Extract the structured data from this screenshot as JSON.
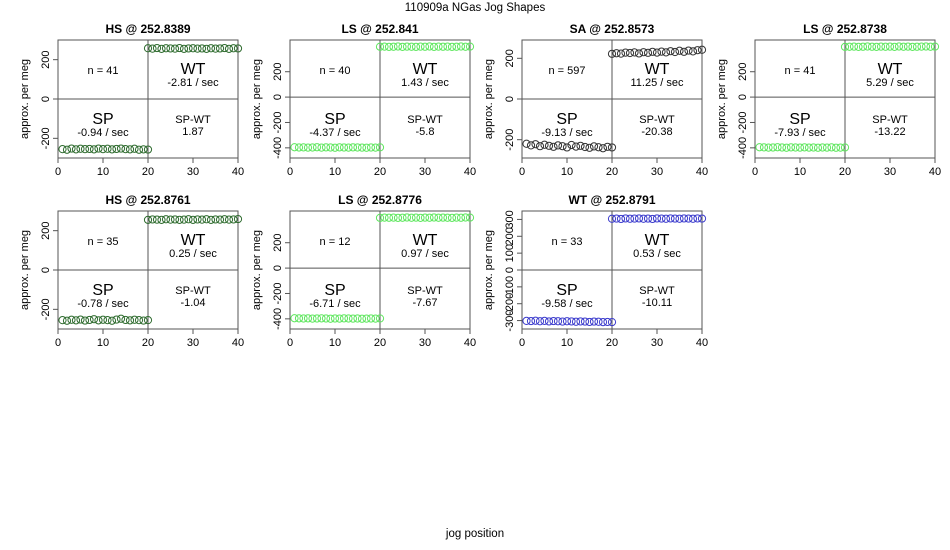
{
  "header": {
    "title": "110909a    NGas Jog Shapes"
  },
  "global_xlabel": "jog position",
  "chart_data": [
    {
      "type": "scatter",
      "title": "HS @ 252.8389",
      "ylabel": "approx. per meg",
      "xlim": [
        0,
        40
      ],
      "ylim": [
        -300,
        300
      ],
      "xticks": [
        0,
        10,
        20,
        30,
        40
      ],
      "xtick_labels": [
        "0",
        "10",
        "20",
        "30",
        "40"
      ],
      "yticks": [
        -200,
        0,
        200
      ],
      "ytick_labels": [
        "-200",
        "0",
        "200"
      ],
      "color": "#2e6b2e",
      "sp_points": {
        "x": [
          1,
          2,
          3,
          4,
          5,
          6,
          7,
          8,
          9,
          10,
          11,
          12,
          13,
          14,
          15,
          16,
          17,
          18,
          19,
          20
        ],
        "y": [
          -255,
          -258,
          -252,
          -256,
          -253,
          -255,
          -254,
          -256,
          -252,
          -255,
          -253,
          -256,
          -254,
          -252,
          -255,
          -256,
          -253,
          -258,
          -256,
          -257
        ]
      },
      "wt_points": {
        "x": [
          20,
          21,
          22,
          23,
          24,
          25,
          26,
          27,
          28,
          29,
          30,
          31,
          32,
          33,
          34,
          35,
          36,
          37,
          38,
          39,
          40
        ],
        "y": [
          258,
          256,
          259,
          255,
          258,
          257,
          256,
          259,
          255,
          257,
          258,
          256,
          257,
          255,
          258,
          256,
          257,
          259,
          255,
          258,
          257
        ]
      },
      "labels": {
        "n": "n = 41",
        "wt": "WT",
        "wt_rate": "-2.81 / sec",
        "sp": "SP",
        "sp_rate": "-0.94 / sec",
        "spwt": "SP-WT",
        "spwt_val": "1.87"
      }
    },
    {
      "type": "scatter",
      "title": "LS @ 252.841",
      "ylabel": "approx. per meg",
      "xlim": [
        0,
        40
      ],
      "ylim": [
        -480,
        450
      ],
      "xticks": [
        0,
        10,
        20,
        30,
        40
      ],
      "xtick_labels": [
        "0",
        "10",
        "20",
        "30",
        "40"
      ],
      "yticks": [
        -400,
        -200,
        0,
        200
      ],
      "ytick_labels": [
        "-400",
        "-200",
        "0",
        "200"
      ],
      "color": "#5ee65e",
      "sp_points": {
        "x": [
          1,
          2,
          3,
          4,
          5,
          6,
          7,
          8,
          9,
          10,
          11,
          12,
          13,
          14,
          15,
          16,
          17,
          18,
          19,
          20
        ],
        "y": [
          -395,
          -397,
          -396,
          -398,
          -397,
          -395,
          -398,
          -396,
          -397,
          -399,
          -396,
          -397,
          -398,
          -396,
          -397,
          -398,
          -399,
          -397,
          -398,
          -396
        ]
      },
      "wt_points": {
        "x": [
          20,
          21,
          22,
          23,
          24,
          25,
          26,
          27,
          28,
          29,
          30,
          31,
          32,
          33,
          34,
          35,
          36,
          37,
          38,
          39,
          40
        ],
        "y": [
          397,
          398,
          396,
          397,
          399,
          396,
          398,
          397,
          396,
          398,
          397,
          399,
          396,
          398,
          397,
          398,
          396,
          397,
          399,
          397,
          398
        ]
      },
      "labels": {
        "n": "n = 40",
        "wt": "WT",
        "wt_rate": "1.43 / sec",
        "sp": "SP",
        "sp_rate": "-4.37 / sec",
        "spwt": "SP-WT",
        "spwt_val": "-5.8"
      }
    },
    {
      "type": "scatter",
      "title": "SA @ 252.8573",
      "ylabel": "approx. per meg",
      "xlim": [
        0,
        40
      ],
      "ylim": [
        -290,
        290
      ],
      "xticks": [
        0,
        10,
        20,
        30,
        40
      ],
      "xtick_labels": [
        "0",
        "10",
        "20",
        "30",
        "40"
      ],
      "yticks": [
        -200,
        0,
        200
      ],
      "ytick_labels": [
        "-200",
        "0",
        "200"
      ],
      "color": "#333333",
      "sp_points": {
        "x": [
          1,
          2,
          3,
          4,
          5,
          6,
          7,
          8,
          9,
          10,
          11,
          12,
          13,
          14,
          15,
          16,
          17,
          18,
          19,
          20
        ],
        "y": [
          -220,
          -228,
          -222,
          -232,
          -225,
          -230,
          -235,
          -228,
          -232,
          -238,
          -226,
          -234,
          -230,
          -236,
          -240,
          -233,
          -237,
          -242,
          -235,
          -238
        ]
      },
      "wt_points": {
        "x": [
          20,
          21,
          22,
          23,
          24,
          25,
          26,
          27,
          28,
          29,
          30,
          31,
          32,
          33,
          34,
          35,
          36,
          37,
          38,
          39,
          40
        ],
        "y": [
          222,
          225,
          223,
          228,
          226,
          229,
          224,
          230,
          227,
          232,
          228,
          233,
          229,
          235,
          231,
          237,
          232,
          238,
          234,
          240,
          242
        ]
      },
      "labels": {
        "n": "n = 597",
        "wt": "WT",
        "wt_rate": "11.25 / sec",
        "sp": "SP",
        "sp_rate": "-9.13 / sec",
        "spwt": "SP-WT",
        "spwt_val": "-20.38"
      }
    },
    {
      "type": "scatter",
      "title": "LS @ 252.8738",
      "ylabel": "approx. per meg",
      "xlim": [
        0,
        40
      ],
      "ylim": [
        -480,
        450
      ],
      "xticks": [
        0,
        10,
        20,
        30,
        40
      ],
      "xtick_labels": [
        "0",
        "10",
        "20",
        "30",
        "40"
      ],
      "yticks": [
        -400,
        -200,
        0,
        200
      ],
      "ytick_labels": [
        "-400",
        "-200",
        "0",
        "200"
      ],
      "color": "#5ee65e",
      "sp_points": {
        "x": [
          1,
          2,
          3,
          4,
          5,
          6,
          7,
          8,
          9,
          10,
          11,
          12,
          13,
          14,
          15,
          16,
          17,
          18,
          19,
          20
        ],
        "y": [
          -395,
          -396,
          -398,
          -397,
          -395,
          -397,
          -399,
          -396,
          -397,
          -398,
          -396,
          -398,
          -397,
          -399,
          -397,
          -398,
          -396,
          -399,
          -398,
          -397
        ]
      },
      "wt_points": {
        "x": [
          20,
          21,
          22,
          23,
          24,
          25,
          26,
          27,
          28,
          29,
          30,
          31,
          32,
          33,
          34,
          35,
          36,
          37,
          38,
          39,
          40
        ],
        "y": [
          396,
          397,
          398,
          396,
          397,
          399,
          397,
          396,
          398,
          397,
          398,
          396,
          399,
          397,
          398,
          396,
          397,
          398,
          399,
          397,
          398
        ]
      },
      "labels": {
        "n": "n = 41",
        "wt": "WT",
        "wt_rate": "5.29 / sec",
        "sp": "SP",
        "sp_rate": "-7.93 / sec",
        "spwt": "SP-WT",
        "spwt_val": "-13.22"
      }
    },
    {
      "type": "scatter",
      "title": "HS @ 252.8761",
      "ylabel": "approx. per meg",
      "xlim": [
        0,
        40
      ],
      "ylim": [
        -300,
        300
      ],
      "xticks": [
        0,
        10,
        20,
        30,
        40
      ],
      "xtick_labels": [
        "0",
        "10",
        "20",
        "30",
        "40"
      ],
      "yticks": [
        -200,
        0,
        200
      ],
      "ytick_labels": [
        "-200",
        "0",
        "200"
      ],
      "color": "#2e6b2e",
      "sp_points": {
        "x": [
          1,
          2,
          3,
          4,
          5,
          6,
          7,
          8,
          9,
          10,
          11,
          12,
          13,
          14,
          15,
          16,
          17,
          18,
          19,
          20
        ],
        "y": [
          -255,
          -258,
          -253,
          -256,
          -252,
          -257,
          -254,
          -250,
          -256,
          -253,
          -255,
          -258,
          -252,
          -248,
          -254,
          -256,
          -253,
          -255,
          -257,
          -255
        ]
      },
      "wt_points": {
        "x": [
          20,
          21,
          22,
          23,
          24,
          25,
          26,
          27,
          28,
          29,
          30,
          31,
          32,
          33,
          34,
          35,
          36,
          37,
          38,
          39,
          40
        ],
        "y": [
          255,
          257,
          256,
          255,
          258,
          256,
          257,
          255,
          256,
          258,
          255,
          257,
          256,
          258,
          255,
          257,
          256,
          258,
          256,
          257,
          259
        ]
      },
      "labels": {
        "n": "n = 35",
        "wt": "WT",
        "wt_rate": "0.25 / sec",
        "sp": "SP",
        "sp_rate": "-0.78 / sec",
        "spwt": "SP-WT",
        "spwt_val": "-1.04"
      }
    },
    {
      "type": "scatter",
      "title": "LS @ 252.8776",
      "ylabel": "approx. per meg",
      "xlim": [
        0,
        40
      ],
      "ylim": [
        -480,
        450
      ],
      "xticks": [
        0,
        10,
        20,
        30,
        40
      ],
      "xtick_labels": [
        "0",
        "10",
        "20",
        "30",
        "40"
      ],
      "yticks": [
        -400,
        -200,
        0,
        200
      ],
      "ytick_labels": [
        "-400",
        "-200",
        "0",
        "200"
      ],
      "color": "#5ee65e",
      "sp_points": {
        "x": [
          1,
          2,
          3,
          4,
          5,
          6,
          7,
          8,
          9,
          10,
          11,
          12,
          13,
          14,
          15,
          16,
          17,
          18,
          19,
          20
        ],
        "y": [
          -395,
          -396,
          -397,
          -396,
          -398,
          -397,
          -396,
          -397,
          -399,
          -397,
          -398,
          -396,
          -397,
          -398,
          -397,
          -399,
          -398,
          -397,
          -398,
          -397
        ]
      },
      "wt_points": {
        "x": [
          20,
          21,
          22,
          23,
          24,
          25,
          26,
          27,
          28,
          29,
          30,
          31,
          32,
          33,
          34,
          35,
          36,
          37,
          38,
          39,
          40
        ],
        "y": [
          396,
          398,
          397,
          398,
          396,
          397,
          399,
          397,
          398,
          396,
          398,
          397,
          399,
          397,
          398,
          397,
          396,
          398,
          397,
          399,
          398
        ]
      },
      "labels": {
        "n": "n = 12",
        "wt": "WT",
        "wt_rate": "0.97 / sec",
        "sp": "SP",
        "sp_rate": "-6.71 / sec",
        "spwt": "SP-WT",
        "spwt_val": "-7.67"
      }
    },
    {
      "type": "scatter",
      "title": "WT @ 252.8791",
      "ylabel": "approx. per meg",
      "xlim": [
        0,
        40
      ],
      "ylim": [
        -350,
        350
      ],
      "xticks": [
        0,
        10,
        20,
        30,
        40
      ],
      "xtick_labels": [
        "0",
        "10",
        "20",
        "30",
        "40"
      ],
      "yticks": [
        -300,
        -200,
        -100,
        0,
        100,
        200,
        300
      ],
      "ytick_labels": [
        "-300",
        "-200",
        "-100",
        "0",
        "100",
        "200",
        "300"
      ],
      "color": "#3a3acc",
      "sp_points": {
        "x": [
          1,
          2,
          3,
          4,
          5,
          6,
          7,
          8,
          9,
          10,
          11,
          12,
          13,
          14,
          15,
          16,
          17,
          18,
          19,
          20
        ],
        "y": [
          -302,
          -303,
          -301,
          -304,
          -302,
          -305,
          -303,
          -304,
          -306,
          -304,
          -305,
          -307,
          -305,
          -306,
          -308,
          -306,
          -307,
          -309,
          -308,
          -309
        ]
      },
      "wt_points": {
        "x": [
          20,
          21,
          22,
          23,
          24,
          25,
          26,
          27,
          28,
          29,
          30,
          31,
          32,
          33,
          34,
          35,
          36,
          37,
          38,
          39,
          40
        ],
        "y": [
          304,
          305,
          303,
          306,
          304,
          305,
          306,
          304,
          305,
          303,
          306,
          305,
          304,
          306,
          305,
          304,
          306,
          305,
          304,
          306,
          305
        ]
      },
      "labels": {
        "n": "n = 33",
        "wt": "WT",
        "wt_rate": "0.53 / sec",
        "sp": "SP",
        "sp_rate": "-9.58 / sec",
        "spwt": "SP-WT",
        "spwt_val": "-10.11"
      }
    }
  ]
}
